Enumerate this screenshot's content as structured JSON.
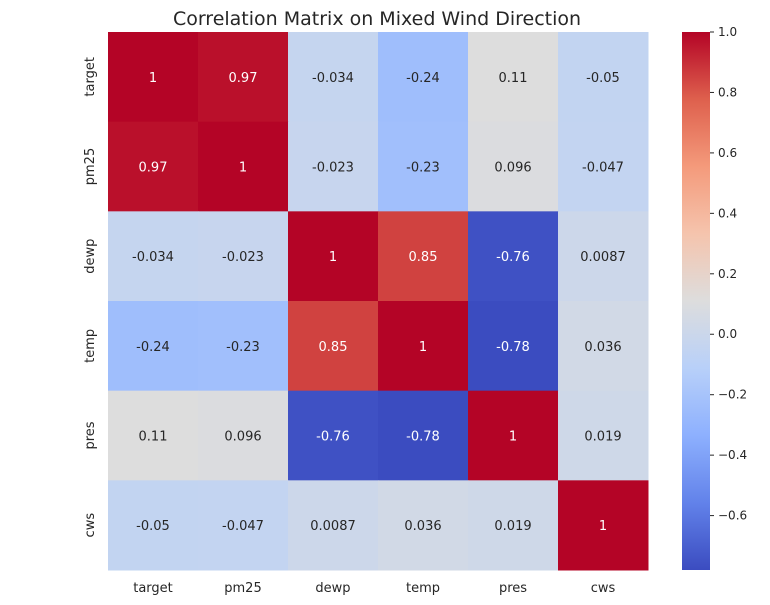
{
  "chart_data": {
    "type": "heatmap",
    "title": "Correlation Matrix on Mixed Wind Direction",
    "rows": [
      "target",
      "pm25",
      "dewp",
      "temp",
      "pres",
      "cws"
    ],
    "columns": [
      "target",
      "pm25",
      "dewp",
      "temp",
      "pres",
      "cws"
    ],
    "values": [
      [
        1,
        0.97,
        -0.034,
        -0.24,
        0.11,
        -0.05
      ],
      [
        0.97,
        1,
        -0.023,
        -0.23,
        0.096,
        -0.047
      ],
      [
        -0.034,
        -0.023,
        1,
        0.85,
        -0.76,
        0.0087
      ],
      [
        -0.24,
        -0.23,
        0.85,
        1,
        -0.78,
        0.036
      ],
      [
        0.11,
        0.096,
        -0.76,
        -0.78,
        1,
        0.019
      ],
      [
        -0.05,
        -0.047,
        0.0087,
        0.036,
        0.019,
        1
      ]
    ],
    "cell_labels": [
      [
        "1",
        "0.97",
        "-0.034",
        "-0.24",
        "0.11",
        "-0.05"
      ],
      [
        "0.97",
        "1",
        "-0.023",
        "-0.23",
        "0.096",
        "-0.047"
      ],
      [
        "-0.034",
        "-0.023",
        "1",
        "0.85",
        "-0.76",
        "0.0087"
      ],
      [
        "-0.24",
        "-0.23",
        "0.85",
        "1",
        "-0.78",
        "0.036"
      ],
      [
        "0.11",
        "0.096",
        "-0.76",
        "-0.78",
        "1",
        "0.019"
      ],
      [
        "-0.05",
        "-0.047",
        "0.0087",
        "0.036",
        "0.019",
        "1"
      ]
    ],
    "colormap": "coolwarm",
    "colorbar": {
      "range": [
        -0.78,
        1.0
      ],
      "ticks": [
        1.0,
        0.8,
        0.6,
        0.4,
        0.2,
        0.0,
        -0.2,
        -0.4,
        -0.6
      ],
      "tick_labels": [
        "1.0",
        "0.8",
        "0.6",
        "0.4",
        "0.2",
        "0.0",
        "−0.2",
        "−0.4",
        "−0.6"
      ],
      "placement": "right"
    },
    "grid": false
  }
}
